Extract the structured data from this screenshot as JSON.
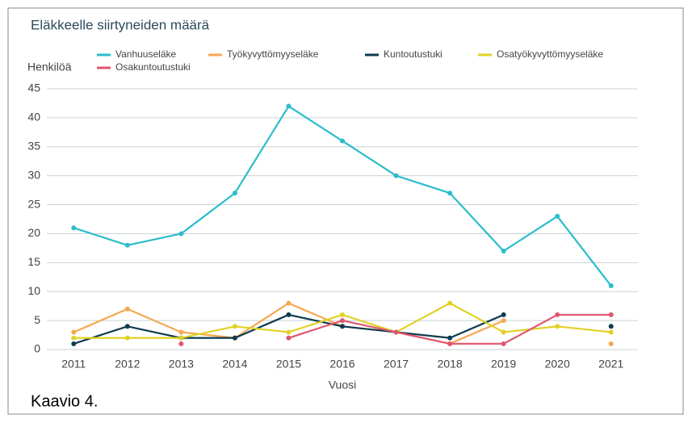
{
  "chart_data": {
    "type": "line",
    "title": "Eläkkeelle siirtyneiden määrä",
    "ylabel": "Henkilöä",
    "xlabel": "Vuosi",
    "x": [
      2011,
      2012,
      2013,
      2014,
      2015,
      2016,
      2017,
      2018,
      2019,
      2020,
      2021
    ],
    "xlim": [
      2010.5,
      2021.5
    ],
    "xticks": [
      2011,
      2012,
      2013,
      2014,
      2015,
      2016,
      2017,
      2018,
      2019,
      2020,
      2021
    ],
    "ylim": [
      0,
      45
    ],
    "yticks": [
      0,
      5,
      10,
      15,
      20,
      25,
      30,
      35,
      40,
      45
    ],
    "grid": true,
    "series": [
      {
        "name": "Vanhuuseläke",
        "color": "#2bbdcc",
        "values": [
          21,
          18,
          20,
          27,
          42,
          36,
          30,
          27,
          17,
          23,
          11
        ]
      },
      {
        "name": "Työkyvyttömyyseläke",
        "color": "#f5a851",
        "values": [
          3,
          7,
          3,
          2,
          8,
          4,
          3,
          1,
          5,
          null,
          1
        ]
      },
      {
        "name": "Kuntoutustuki",
        "color": "#0e3b4f",
        "values": [
          1,
          4,
          2,
          2,
          6,
          4,
          3,
          2,
          6,
          null,
          4
        ]
      },
      {
        "name": "Osatyökyvyttömyyseläke",
        "color": "#e0d224",
        "values": [
          2,
          2,
          2,
          4,
          3,
          6,
          3,
          8,
          3,
          4,
          3
        ]
      },
      {
        "name": "Osakuntoutustuki",
        "color": "#e0566f",
        "values": [
          null,
          null,
          1,
          null,
          2,
          5,
          3,
          1,
          1,
          6,
          6
        ]
      }
    ]
  },
  "caption": "Kaavio 4."
}
